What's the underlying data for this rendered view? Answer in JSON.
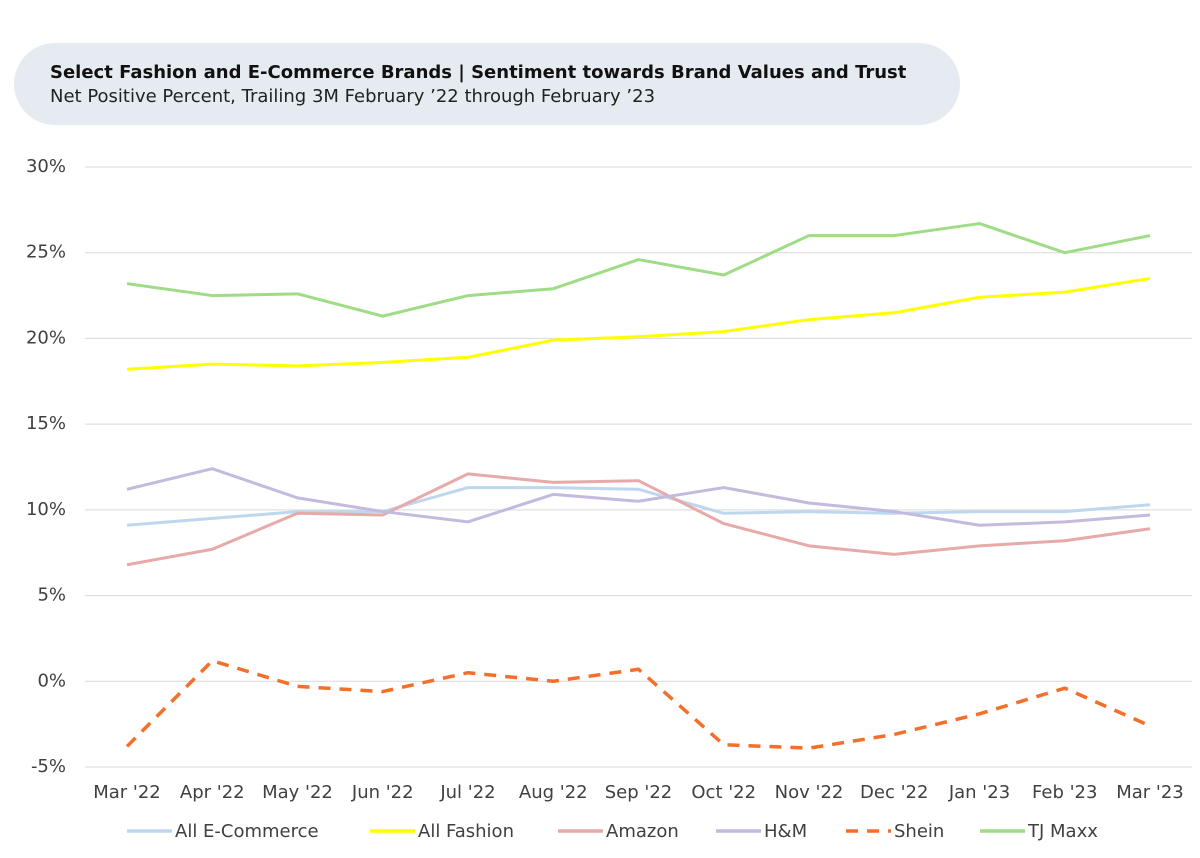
{
  "chart_data": {
    "type": "line",
    "title": "Select Fashion and E-Commerce Brands | Sentiment towards Brand Values and Trust",
    "subtitle": "Net Positive Percent, Trailing 3M February ’22 through February ’23",
    "categories": [
      "Mar '22",
      "Apr '22",
      "May '22",
      "Jun '22",
      "Jul '22",
      "Aug '22",
      "Sep '22",
      "Oct '22",
      "Nov '22",
      "Dec '22",
      "Jan '23",
      "Feb '23",
      "Mar '23"
    ],
    "ylim": [
      -5,
      30
    ],
    "yticks": [
      {
        "value": -5,
        "label": "-5%"
      },
      {
        "value": 0,
        "label": "0%"
      },
      {
        "value": 5,
        "label": "5%"
      },
      {
        "value": 10,
        "label": "10%"
      },
      {
        "value": 15,
        "label": "15%"
      },
      {
        "value": 20,
        "label": "20%"
      },
      {
        "value": 25,
        "label": "25%"
      },
      {
        "value": 30,
        "label": "30%"
      }
    ],
    "grid": true,
    "legend": "bottom",
    "series": [
      {
        "name": "All E-Commerce",
        "color": "#bdd7ee",
        "values": [
          9.1,
          9.5,
          9.9,
          9.9,
          11.3,
          11.3,
          11.2,
          9.8,
          9.9,
          9.8,
          9.9,
          9.9,
          10.3
        ]
      },
      {
        "name": "All Fashion",
        "color": "#ffff00",
        "values": [
          18.2,
          18.5,
          18.4,
          18.6,
          18.9,
          19.9,
          20.1,
          20.4,
          21.1,
          21.5,
          22.4,
          22.7,
          23.5
        ]
      },
      {
        "name": "Amazon",
        "color": "#e8a9a9",
        "values": [
          6.8,
          7.7,
          9.8,
          9.7,
          12.1,
          11.6,
          11.7,
          9.2,
          7.9,
          7.4,
          7.9,
          8.2,
          8.9
        ]
      },
      {
        "name": "H&M",
        "color": "#c3bade",
        "values": [
          11.2,
          12.4,
          10.7,
          9.9,
          9.3,
          10.9,
          10.5,
          11.3,
          10.4,
          9.9,
          9.1,
          9.3,
          9.7
        ]
      },
      {
        "name": "Shein",
        "color": "#f36f2a",
        "dashed": true,
        "values": [
          -3.8,
          1.2,
          -0.3,
          -0.6,
          0.5,
          0.0,
          0.7,
          -3.7,
          -3.9,
          -3.1,
          -1.9,
          -0.4,
          -2.6
        ]
      },
      {
        "name": "TJ Maxx",
        "color": "#9fdc86",
        "values": [
          23.2,
          22.5,
          22.6,
          21.3,
          22.5,
          22.9,
          24.6,
          23.7,
          26.0,
          26.0,
          26.7,
          25.0,
          26.0
        ]
      }
    ]
  }
}
